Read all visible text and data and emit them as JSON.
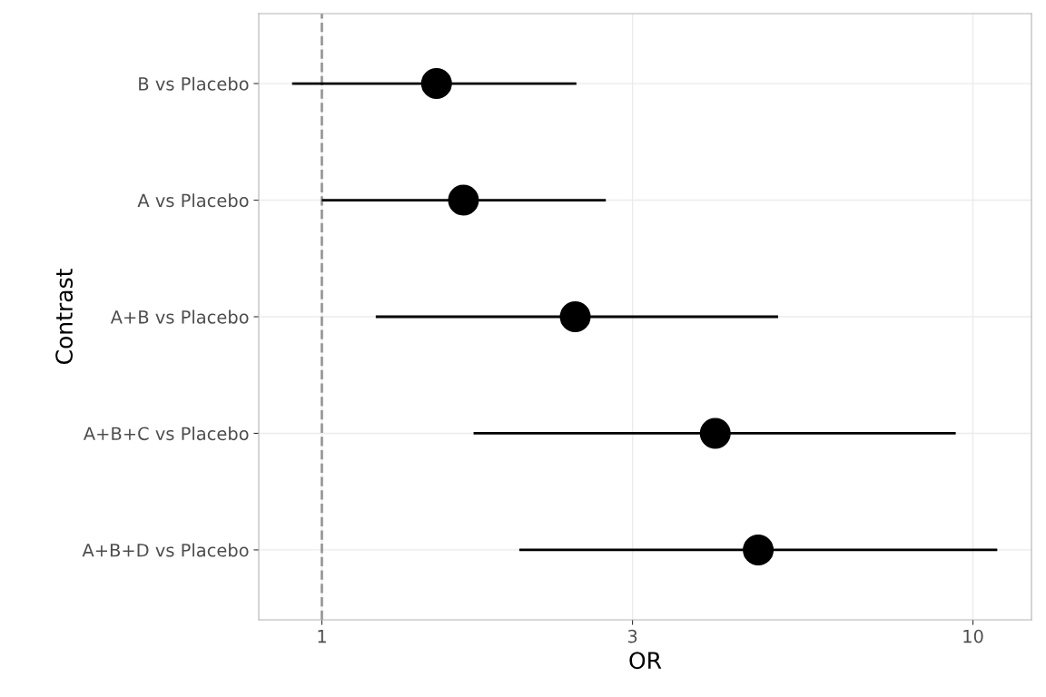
{
  "chart_data": {
    "type": "scatter",
    "orientation": "horizontal",
    "xlabel": "OR",
    "ylabel": "Contrast",
    "categories": [
      "B vs Placebo",
      "A vs Placebo",
      "A+B vs Placebo",
      "A+B+C vs Placebo",
      "A+B+D vs Placebo"
    ],
    "values": [
      1.5,
      1.65,
      2.45,
      4.02,
      4.68
    ],
    "errors": [
      [
        0.9,
        2.46
      ],
      [
        1.0,
        2.73
      ],
      [
        1.21,
        5.02
      ],
      [
        1.71,
        9.41
      ],
      [
        2.01,
        10.9
      ]
    ],
    "color": "#000000",
    "marker": "circle",
    "log": "x",
    "xlim": [
      0.8,
      12.3
    ],
    "xticks": [
      1,
      3,
      10
    ],
    "grid": true,
    "ref_lines": [
      {
        "axis": "x",
        "value": 1,
        "color": "#999999",
        "line_style": "dashed"
      }
    ]
  }
}
